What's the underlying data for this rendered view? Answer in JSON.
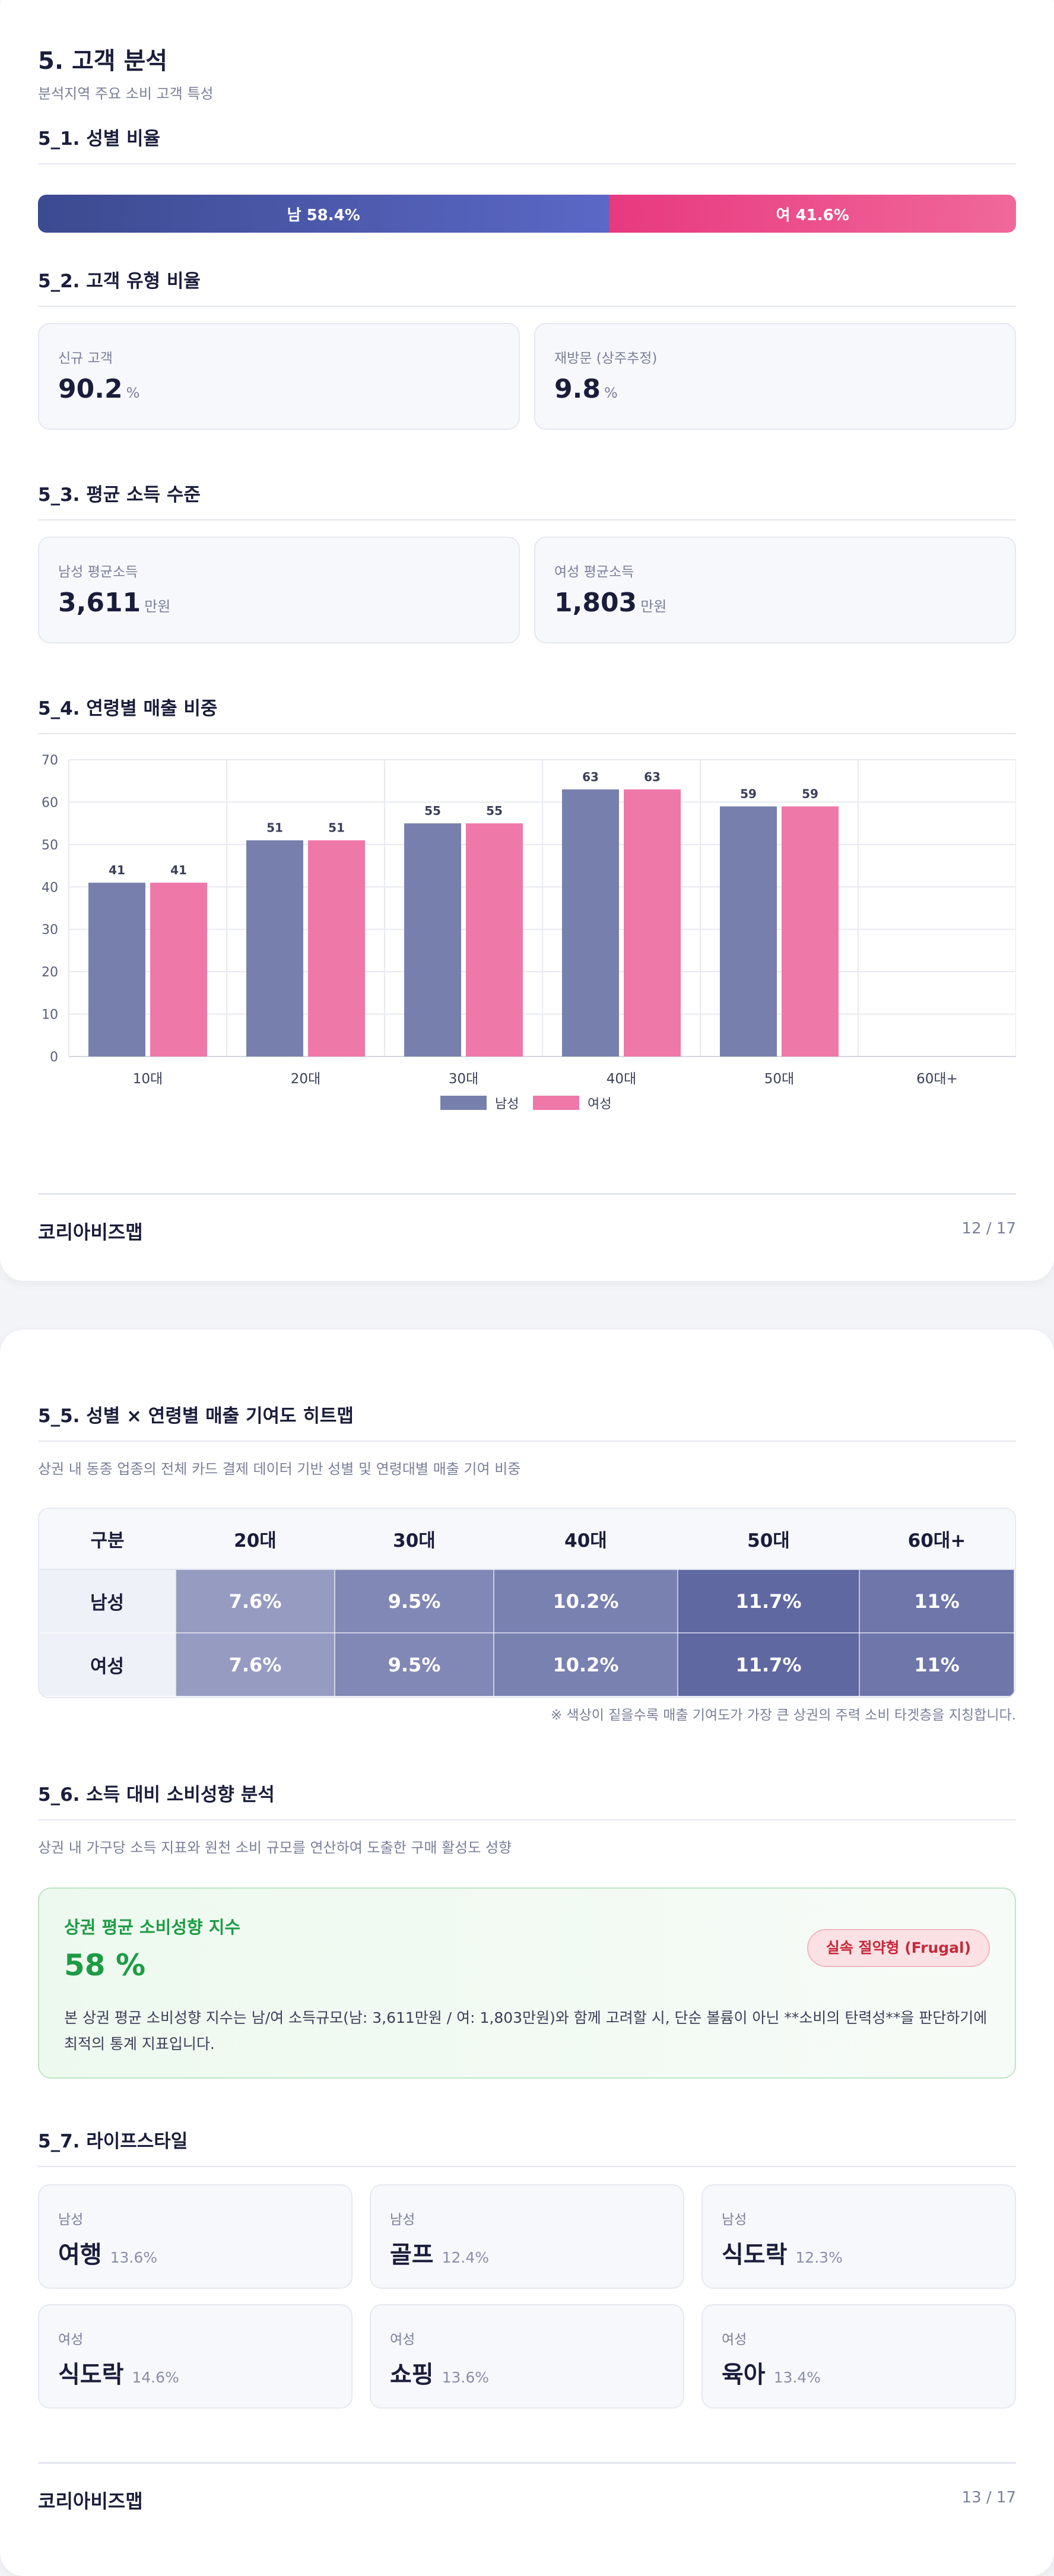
{
  "page1": {
    "title": "5. 고객 분석",
    "subtitle": "분석지역 주요 소비 고객 특성",
    "gender": {
      "heading": "5_1. 성별 비율",
      "male_label": "남 58.4%",
      "female_label": "여 41.6%",
      "male_pct": 58.4,
      "female_pct": 41.6,
      "male_color": "#4a57a8",
      "female_color": "#ea4b8b"
    },
    "customer_type": {
      "heading": "5_2. 고객 유형 비율",
      "new_label": "신규 고객",
      "new_value": "90.2",
      "new_unit": "%",
      "revisit_label": "재방문 (상주추정)",
      "revisit_value": "9.8",
      "revisit_unit": "%"
    },
    "income": {
      "heading": "5_3. 평균 소득 수준",
      "male_label": "남성 평균소득",
      "male_value": "3,611",
      "male_unit": "만원",
      "female_label": "여성 평균소득",
      "female_value": "1,803",
      "female_unit": "만원"
    },
    "age_sales_heading": "5_4. 연령별 매출 비중",
    "footer": {
      "brand": "코리아비즈맵",
      "page": "12 / 17"
    }
  },
  "chart_data": {
    "type": "bar",
    "title": "",
    "categories": [
      "10대",
      "20대",
      "30대",
      "40대",
      "50대",
      "60대+"
    ],
    "series": [
      {
        "name": "남성",
        "values": [
          41,
          51,
          55,
          63,
          59,
          null
        ],
        "color": "#7780ad"
      },
      {
        "name": "여성",
        "values": [
          41,
          51,
          55,
          63,
          59,
          null
        ],
        "color": "#ee78a8"
      }
    ],
    "ylim": [
      0,
      70
    ],
    "yticks": [
      0,
      10,
      20,
      30,
      40,
      50,
      60,
      70
    ],
    "grid": true,
    "legend": "bottom-center",
    "xlabel": "",
    "ylabel": ""
  },
  "page2": {
    "heatmap": {
      "heading": "5_5. 성별 × 연령별 매출 기여도 히트맵",
      "desc": "상권 내 동종 업종의 전체 카드 결제 데이터 기반 성별 및 연령대별 매출 기여 비중",
      "corner": "구분",
      "columns": [
        "20대",
        "30대",
        "40대",
        "50대",
        "60대+"
      ],
      "rows": [
        {
          "label": "남성",
          "cells": [
            "7.6%",
            "9.5%",
            "10.2%",
            "11.7%",
            "11%"
          ]
        },
        {
          "label": "여성",
          "cells": [
            "7.6%",
            "9.5%",
            "10.2%",
            "11.7%",
            "11%"
          ]
        }
      ],
      "colors": [
        "#969bc2",
        "#8188b5",
        "#7981b1",
        "#6068a2",
        "#6e76aa"
      ],
      "note": "※ 색상이 짙을수록 매출 기여도가 가장 큰 상권의 주력 소비 타겟층을 지칭합니다."
    },
    "spending": {
      "heading": "5_6. 소득 대비 소비성향 분석",
      "desc": "상권 내 가구당 소득 지표와 원천 소비 규모를 연산하여 도출한 구매 활성도 성향",
      "box_title": "상권 평균 소비성향 지수",
      "value": "58 %",
      "badge": "실속 절약형 (Frugal)",
      "text": "본 상권 평균 소비성향 지수는 남/여 소득규모(남: 3,611만원 / 여: 1,803만원)와 함께 고려할 시, 단순 볼륨이 아닌 **소비의 탄력성**을 판단하기에 최적의 통계 지표입니다."
    },
    "lifestyle": {
      "heading": "5_7. 라이프스타일",
      "items": [
        {
          "gender": "남성",
          "name": "여행",
          "pct": "13.6%"
        },
        {
          "gender": "남성",
          "name": "골프",
          "pct": "12.4%"
        },
        {
          "gender": "남성",
          "name": "식도락",
          "pct": "12.3%"
        },
        {
          "gender": "여성",
          "name": "식도락",
          "pct": "14.6%"
        },
        {
          "gender": "여성",
          "name": "쇼핑",
          "pct": "13.6%"
        },
        {
          "gender": "여성",
          "name": "육아",
          "pct": "13.4%"
        }
      ]
    },
    "footer": {
      "brand": "코리아비즈맵",
      "page": "13 / 17"
    }
  }
}
